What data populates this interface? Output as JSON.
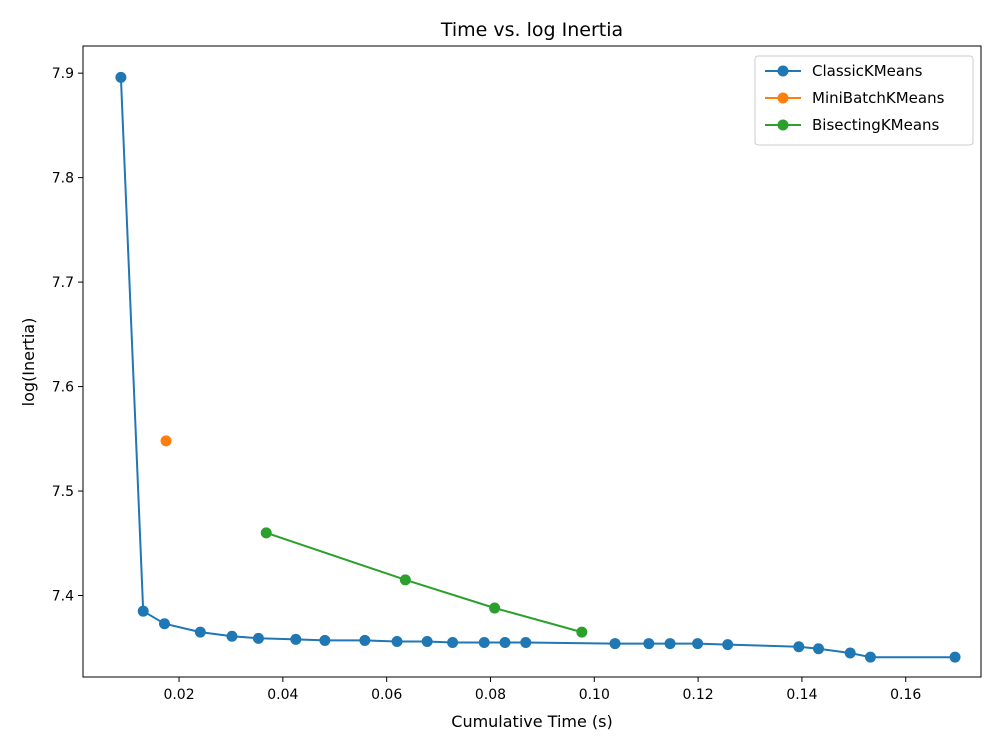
{
  "chart_data": {
    "type": "line",
    "title": "Time vs. log Inertia",
    "xlabel": "Cumulative Time (s)",
    "ylabel": "log(Inertia)",
    "xlim": [
      0.0015,
      0.1745
    ],
    "ylim": [
      7.322,
      7.926
    ],
    "xticks": [
      0.02,
      0.04,
      0.06,
      0.08,
      0.1,
      0.12,
      0.14,
      0.16
    ],
    "xtick_labels": [
      "0.02",
      "0.04",
      "0.06",
      "0.08",
      "0.10",
      "0.12",
      "0.14",
      "0.16"
    ],
    "yticks": [
      7.4,
      7.5,
      7.6,
      7.7,
      7.8,
      7.9
    ],
    "ytick_labels": [
      "7.4",
      "7.5",
      "7.6",
      "7.7",
      "7.8",
      "7.9"
    ],
    "grid": false,
    "legend_position": "top-right",
    "series": [
      {
        "name": "ClassicKMeans",
        "color": "#1f77b4",
        "x": [
          0.0088,
          0.0131,
          0.0172,
          0.0241,
          0.0302,
          0.0353,
          0.0425,
          0.0481,
          0.0558,
          0.062,
          0.0678,
          0.0727,
          0.0788,
          0.0828,
          0.0868,
          0.104,
          0.1105,
          0.1146,
          0.1199,
          0.1257,
          0.1394,
          0.1432,
          0.1493,
          0.1532,
          0.1695
        ],
        "y": [
          7.896,
          7.385,
          7.373,
          7.365,
          7.361,
          7.359,
          7.358,
          7.357,
          7.357,
          7.356,
          7.356,
          7.355,
          7.355,
          7.355,
          7.355,
          7.354,
          7.354,
          7.354,
          7.354,
          7.353,
          7.351,
          7.349,
          7.345,
          7.341,
          7.341
        ]
      },
      {
        "name": "MiniBatchKMeans",
        "color": "#ff7f0e",
        "x": [
          0.0175
        ],
        "y": [
          7.548
        ]
      },
      {
        "name": "BisectingKMeans",
        "color": "#2ca02c",
        "x": [
          0.0368,
          0.0636,
          0.0808,
          0.0976
        ],
        "y": [
          7.46,
          7.415,
          7.388,
          7.365
        ]
      }
    ]
  }
}
